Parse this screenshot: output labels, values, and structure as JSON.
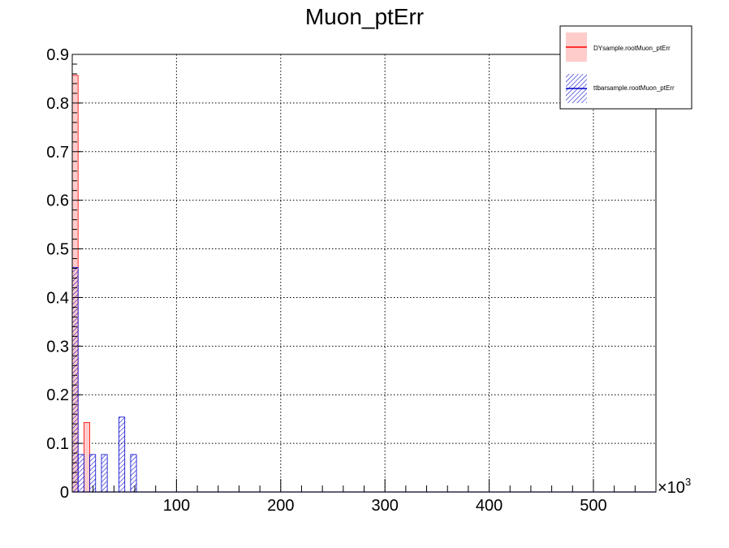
{
  "chart_data": {
    "type": "bar",
    "title": "Muon_ptErr",
    "xlabel": "",
    "ylabel": "",
    "x_multiplier_label": "×10",
    "x_multiplier_exp": "3",
    "xlim": [
      0,
      560
    ],
    "ylim": [
      0,
      0.9
    ],
    "x_ticks": [
      100,
      200,
      300,
      400,
      500
    ],
    "x_tick_labels": [
      "100",
      "200",
      "300",
      "400",
      "500"
    ],
    "y_ticks": [
      0,
      0.1,
      0.2,
      0.3,
      0.4,
      0.5,
      0.6,
      0.7,
      0.8,
      0.9
    ],
    "y_tick_labels": [
      "0",
      "0.1",
      "0.2",
      "0.3",
      "0.4",
      "0.5",
      "0.6",
      "0.7",
      "0.8",
      "0.9"
    ],
    "grid": true,
    "legend_position": "top-right",
    "series": [
      {
        "name": "DYsample.rootMuon_ptErr",
        "color": "#ff0000",
        "fill": "#ffcccc",
        "style": "solid-fill",
        "bins": [
          {
            "x0": 0,
            "x1": 5.6,
            "y": 0.857
          },
          {
            "x0": 11.2,
            "x1": 16.8,
            "y": 0.143
          }
        ]
      },
      {
        "name": "ttbarsample.rootMuon_ptErr",
        "color": "#0000cc",
        "fill": "#0000cc",
        "style": "hatched",
        "bins": [
          {
            "x0": 0,
            "x1": 5.6,
            "y": 0.462
          },
          {
            "x0": 5.6,
            "x1": 11.2,
            "y": 0.077
          },
          {
            "x0": 16.8,
            "x1": 22.4,
            "y": 0.077
          },
          {
            "x0": 28,
            "x1": 33.6,
            "y": 0.077
          },
          {
            "x0": 44.8,
            "x1": 50.4,
            "y": 0.154
          },
          {
            "x0": 56,
            "x1": 61.6,
            "y": 0.077
          }
        ]
      }
    ]
  }
}
